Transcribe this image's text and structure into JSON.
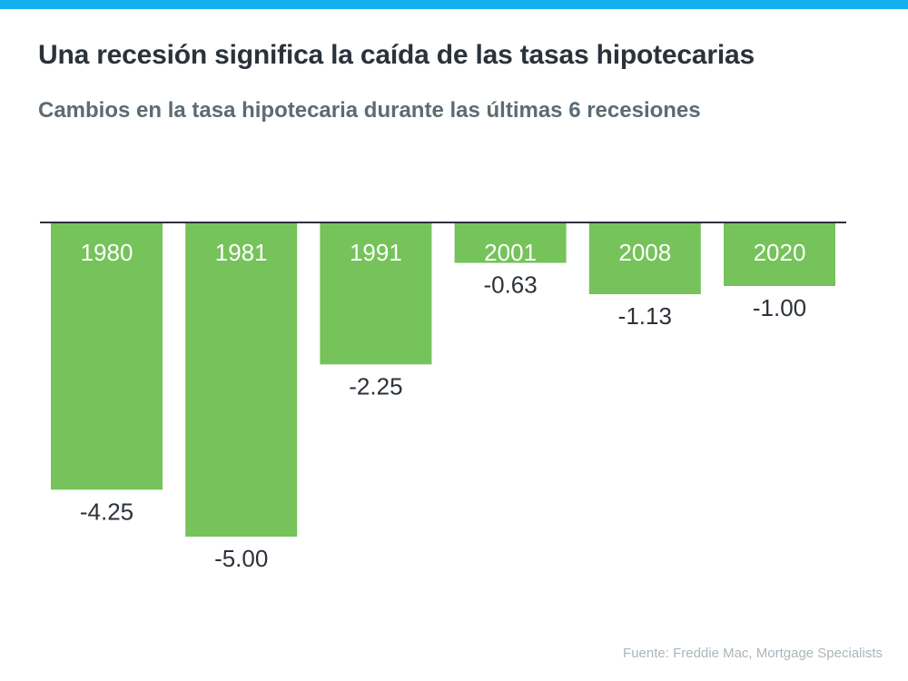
{
  "header": {
    "title": "Una recesión significa la caída de las tasas hipotecarias",
    "subtitle": "Cambios en la tasa hipotecaria durante las últimas 6 recesiones"
  },
  "footer": {
    "source": "Fuente: Freddie Mac, Mortgage Specialists"
  },
  "colors": {
    "accent_bar": "#14adee",
    "bar": "#75c35a",
    "axis": "#2b323a",
    "value_label": "#2b323a",
    "category_label": "#ffffff"
  },
  "chart_data": {
    "type": "bar",
    "title": "Una recesión significa la caída de las tasas hipotecarias",
    "subtitle": "Cambios en la tasa hipotecaria durante las últimas 6 recesiones",
    "categories": [
      "1980",
      "1981",
      "1991",
      "2001",
      "2008",
      "2020"
    ],
    "values": [
      -4.25,
      -5.0,
      -2.25,
      -0.63,
      -1.13,
      -1.0
    ],
    "value_labels": [
      "-4.25",
      "-5.00",
      "-2.25",
      "-0.63",
      "-1.13",
      "-1.00"
    ],
    "xlabel": "",
    "ylabel": "",
    "ylim": [
      -5.0,
      0
    ],
    "grid": false,
    "legend": "none"
  }
}
